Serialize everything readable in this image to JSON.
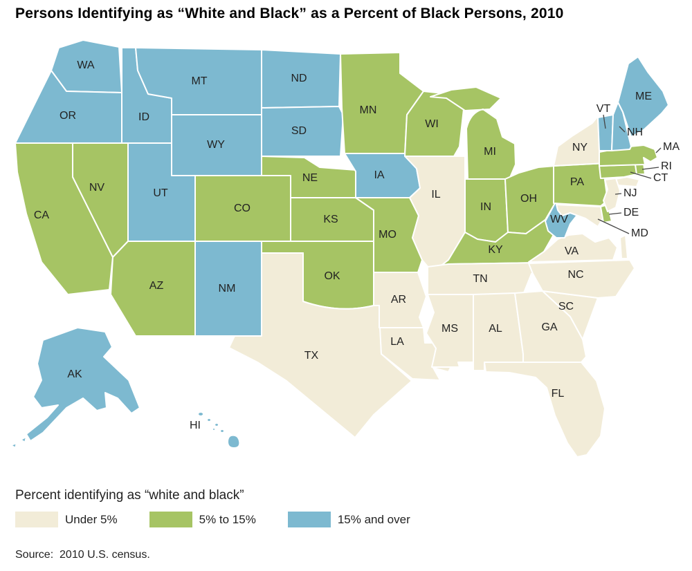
{
  "title": "Persons Identifying as “White and Black” as a Percent of Black Persons, 2010",
  "legend": {
    "title": "Percent identifying as “white and black”",
    "items": [
      {
        "label": "Under 5%",
        "category": "under5",
        "color": "#f2ecd8"
      },
      {
        "label": "5% to 15%",
        "category": "pct5to15",
        "color": "#a6c464"
      },
      {
        "label": "15% and over",
        "category": "over15",
        "color": "#7db9d0"
      }
    ]
  },
  "source": "Source:  2010 U.S. census.",
  "map": {
    "states": {
      "WA": {
        "label": "WA",
        "category": "over15"
      },
      "OR": {
        "label": "OR",
        "category": "over15"
      },
      "CA": {
        "label": "CA",
        "category": "pct5to15"
      },
      "NV": {
        "label": "NV",
        "category": "pct5to15"
      },
      "ID": {
        "label": "ID",
        "category": "over15"
      },
      "MT": {
        "label": "MT",
        "category": "over15"
      },
      "WY": {
        "label": "WY",
        "category": "over15"
      },
      "UT": {
        "label": "UT",
        "category": "over15"
      },
      "CO": {
        "label": "CO",
        "category": "pct5to15"
      },
      "AZ": {
        "label": "AZ",
        "category": "pct5to15"
      },
      "NM": {
        "label": "NM",
        "category": "over15"
      },
      "ND": {
        "label": "ND",
        "category": "over15"
      },
      "SD": {
        "label": "SD",
        "category": "over15"
      },
      "NE": {
        "label": "NE",
        "category": "pct5to15"
      },
      "KS": {
        "label": "KS",
        "category": "pct5to15"
      },
      "OK": {
        "label": "OK",
        "category": "pct5to15"
      },
      "TX": {
        "label": "TX",
        "category": "under5"
      },
      "MN": {
        "label": "MN",
        "category": "pct5to15"
      },
      "IA": {
        "label": "IA",
        "category": "over15"
      },
      "MO": {
        "label": "MO",
        "category": "pct5to15"
      },
      "AR": {
        "label": "AR",
        "category": "under5"
      },
      "LA": {
        "label": "LA",
        "category": "under5"
      },
      "WI": {
        "label": "WI",
        "category": "pct5to15"
      },
      "IL": {
        "label": "IL",
        "category": "under5"
      },
      "MS": {
        "label": "MS",
        "category": "under5"
      },
      "MI": {
        "label": "MI",
        "category": "pct5to15"
      },
      "IN": {
        "label": "IN",
        "category": "pct5to15"
      },
      "OH": {
        "label": "OH",
        "category": "pct5to15"
      },
      "KY": {
        "label": "KY",
        "category": "pct5to15"
      },
      "TN": {
        "label": "TN",
        "category": "under5"
      },
      "AL": {
        "label": "AL",
        "category": "under5"
      },
      "GA": {
        "label": "GA",
        "category": "under5"
      },
      "FL": {
        "label": "FL",
        "category": "under5"
      },
      "SC": {
        "label": "SC",
        "category": "under5"
      },
      "NC": {
        "label": "NC",
        "category": "under5"
      },
      "VA": {
        "label": "VA",
        "category": "under5"
      },
      "WV": {
        "label": "WV",
        "category": "over15"
      },
      "PA": {
        "label": "PA",
        "category": "pct5to15"
      },
      "NY": {
        "label": "NY",
        "category": "under5"
      },
      "ME": {
        "label": "ME",
        "category": "over15"
      },
      "VT": {
        "label": "VT",
        "category": "over15"
      },
      "NH": {
        "label": "NH",
        "category": "over15"
      },
      "MA": {
        "label": "MA",
        "category": "pct5to15"
      },
      "RI": {
        "label": "RI",
        "category": "pct5to15"
      },
      "CT": {
        "label": "CT",
        "category": "pct5to15"
      },
      "NJ": {
        "label": "NJ",
        "category": "under5"
      },
      "DE": {
        "label": "DE",
        "category": "pct5to15"
      },
      "MD": {
        "label": "MD",
        "category": "under5"
      },
      "AK": {
        "label": "AK",
        "category": "over15"
      },
      "HI": {
        "label": "HI",
        "category": "over15"
      }
    }
  },
  "chart_data": {
    "type": "choropleth",
    "title": "Persons Identifying as “White and Black” as a Percent of Black Persons, 2010",
    "legend_title": "Percent identifying as “white and black”",
    "classes": [
      "Under 5%",
      "5% to 15%",
      "15% and over"
    ],
    "class_colors": [
      "#f2ecd8",
      "#a6c464",
      "#7db9d0"
    ],
    "source": "2010 U.S. census",
    "states_under_5pct": [
      "TX",
      "IL",
      "TN",
      "AR",
      "LA",
      "MS",
      "AL",
      "GA",
      "FL",
      "SC",
      "NC",
      "VA",
      "MD",
      "NJ",
      "NY"
    ],
    "states_5_to_15pct": [
      "CA",
      "NV",
      "AZ",
      "CO",
      "NE",
      "KS",
      "OK",
      "MO",
      "MN",
      "WI",
      "MI",
      "IN",
      "OH",
      "KY",
      "PA",
      "MA",
      "RI",
      "CT",
      "DE"
    ],
    "states_15pct_and_over": [
      "WA",
      "OR",
      "ID",
      "MT",
      "WY",
      "UT",
      "NM",
      "ND",
      "SD",
      "IA",
      "WV",
      "VT",
      "NH",
      "ME",
      "AK",
      "HI"
    ]
  }
}
